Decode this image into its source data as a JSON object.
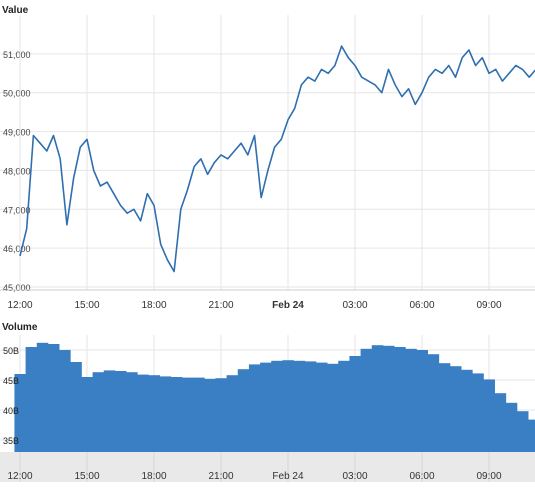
{
  "chart_data": [
    {
      "type": "line",
      "title": "",
      "ylabel": "Value",
      "xlabel": "",
      "x_tick_labels": [
        "12:00",
        "15:00",
        "18:00",
        "21:00",
        "Feb 24",
        "03:00",
        "06:00",
        "09:00"
      ],
      "y_tick_labels": [
        "45,000",
        "46,000",
        "47,000",
        "48,000",
        "49,000",
        "50,000",
        "51,000"
      ],
      "ylim": [
        45000,
        52000
      ],
      "xlim_hours": [
        0,
        23.7
      ],
      "grid": true,
      "line_color": "#2f6fb0",
      "series": [
        {
          "x_hours": [
            0,
            0.3,
            0.6,
            0.9,
            1.2,
            1.5,
            1.8,
            2.1,
            2.4,
            2.7,
            3.0,
            3.3,
            3.6,
            3.9,
            4.2,
            4.5,
            4.8,
            5.1,
            5.4,
            5.7,
            6.0,
            6.3,
            6.6,
            6.9,
            7.2,
            7.5,
            7.8,
            8.1,
            8.4,
            8.7,
            9.0,
            9.3,
            9.6,
            9.9,
            10.2,
            10.5,
            10.8,
            11.1,
            11.4,
            11.7,
            12.0,
            12.3,
            12.6,
            12.9,
            13.2,
            13.5,
            13.8,
            14.1,
            14.4,
            14.7,
            15.0,
            15.3,
            15.6,
            15.9,
            16.2,
            16.5,
            16.8,
            17.1,
            17.4,
            17.7,
            18.0,
            18.3,
            18.6,
            18.9,
            19.2,
            19.5,
            19.8,
            20.1,
            20.4,
            20.7,
            21.0,
            21.3,
            21.6,
            21.9,
            22.2,
            22.5,
            22.8,
            23.1,
            23.4,
            23.7
          ],
          "values": [
            45800,
            46500,
            48900,
            48700,
            48500,
            48900,
            48300,
            46600,
            47800,
            48600,
            48800,
            48000,
            47600,
            47700,
            47400,
            47100,
            46900,
            47000,
            46700,
            47400,
            47100,
            46100,
            45700,
            45400,
            47000,
            47500,
            48100,
            48300,
            47900,
            48200,
            48400,
            48300,
            48500,
            48700,
            48400,
            48900,
            47300,
            48000,
            48600,
            48800,
            49300,
            49600,
            50200,
            50400,
            50300,
            50600,
            50500,
            50700,
            51200,
            50900,
            50700,
            50400,
            50300,
            50200,
            50000,
            50600,
            50200,
            49900,
            50100,
            49700,
            50000,
            50400,
            50600,
            50500,
            50700,
            50400,
            50900,
            51100,
            50700,
            50900,
            50500,
            50600,
            50300,
            50500,
            50700,
            50600,
            50400,
            50600,
            50500,
            50300
          ]
        }
      ]
    },
    {
      "type": "bar",
      "title": "",
      "ylabel": "Volume",
      "xlabel": "",
      "x_tick_labels": [
        "12:00",
        "15:00",
        "18:00",
        "21:00",
        "Feb 24",
        "03:00",
        "06:00",
        "09:00"
      ],
      "y_tick_labels": [
        "35B",
        "40B",
        "45B",
        "50B"
      ],
      "ylim": [
        33000000000,
        52500000000
      ],
      "bar_color": "#3a7fc4",
      "series": [
        {
          "x_hours": [
            0,
            0.5,
            1.0,
            1.5,
            2.0,
            2.5,
            3.0,
            3.5,
            4.0,
            4.5,
            5.0,
            5.5,
            6.0,
            6.5,
            7.0,
            7.5,
            8.0,
            8.5,
            9.0,
            9.5,
            10.0,
            10.5,
            11.0,
            11.5,
            12.0,
            12.5,
            13.0,
            13.5,
            14.0,
            14.5,
            15.0,
            15.5,
            16.0,
            16.5,
            17.0,
            17.5,
            18.0,
            18.5,
            19.0,
            19.5,
            20.0,
            20.5,
            21.0,
            21.5,
            22.0,
            22.5,
            23.0,
            23.5
          ],
          "values": [
            46000000000,
            50500000000,
            51200000000,
            51000000000,
            50000000000,
            48000000000,
            45500000000,
            46300000000,
            46600000000,
            46500000000,
            46300000000,
            45900000000,
            45800000000,
            45600000000,
            45500000000,
            45400000000,
            45400000000,
            45200000000,
            45300000000,
            45800000000,
            46800000000,
            47600000000,
            47900000000,
            48200000000,
            48300000000,
            48200000000,
            48100000000,
            47900000000,
            47700000000,
            48200000000,
            49000000000,
            50200000000,
            50800000000,
            50700000000,
            50500000000,
            50200000000,
            50000000000,
            49300000000,
            47800000000,
            47300000000,
            46700000000,
            46100000000,
            45100000000,
            42800000000,
            41200000000,
            39800000000,
            38400000000,
            36200000000
          ]
        }
      ]
    }
  ]
}
